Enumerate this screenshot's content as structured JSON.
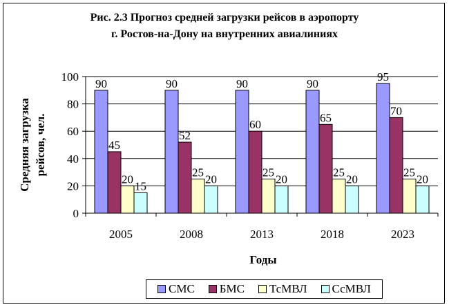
{
  "chart_data": {
    "type": "bar",
    "title_line1": "Рис. 2.3 Прогноз средней загрузки рейсов в аэропорту",
    "title_line2": "г. Ростов-на-Дону на внутренних авиалиниях",
    "xlabel": "Годы",
    "ylabel_line1": "Средняя загрузка",
    "ylabel_line2": "рейсов, чел.",
    "categories": [
      "2005",
      "2008",
      "2013",
      "2018",
      "2023"
    ],
    "ylim": [
      0,
      100
    ],
    "yticks": [
      "0",
      "20",
      "40",
      "60",
      "80",
      "100"
    ],
    "grid": true,
    "legend_position": "bottom",
    "series": [
      {
        "name": "СМС",
        "color": "#9999ff",
        "values": [
          90,
          90,
          90,
          90,
          95
        ]
      },
      {
        "name": "БМС",
        "color": "#993366",
        "values": [
          45,
          52,
          60,
          65,
          70
        ]
      },
      {
        "name": "ТсМВЛ",
        "color": "#ffffcc",
        "values": [
          20,
          25,
          25,
          25,
          25
        ]
      },
      {
        "name": "СсМВЛ",
        "color": "#ccffff",
        "values": [
          15,
          20,
          20,
          20,
          20
        ]
      }
    ]
  }
}
